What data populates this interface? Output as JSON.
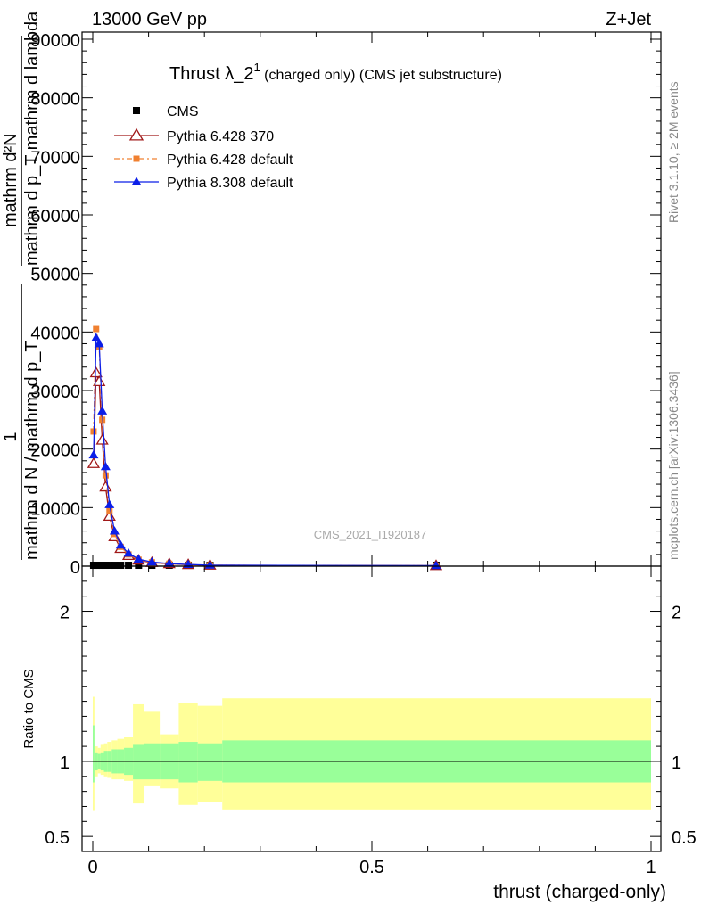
{
  "header": {
    "left": "13000 GeV pp",
    "right": "Z+Jet"
  },
  "side_texts": {
    "rivet": "Rivet 3.1.10, ≥ 2M events",
    "mcplots": "mcplots.cern.ch [arXiv:1306.3436]"
  },
  "watermark": "CMS_2021_I1920187",
  "chart_data": [
    {
      "type": "line",
      "title_main": "Thrust λ_2",
      "title_sup": "1",
      "title_rest": " (charged only) (CMS jet substructure)",
      "ylabel_parts": [
        "1",
        "mathrm d N / mathrm d p_T",
        "mathrm d²N",
        "mathrm d p_T mathrm d lambda"
      ],
      "xlim": [
        0,
        1
      ],
      "ylim": [
        0,
        90000
      ],
      "yticks": [
        {
          "v": 0,
          "label": "0"
        },
        {
          "v": 10000,
          "label": "10000"
        },
        {
          "v": 20000,
          "label": "20000"
        },
        {
          "v": 30000,
          "label": "30000"
        },
        {
          "v": 40000,
          "label": "40000"
        },
        {
          "v": 50000,
          "label": "50000"
        },
        {
          "v": 60000,
          "label": "60000"
        },
        {
          "v": 70000,
          "label": "70000"
        },
        {
          "v": 80000,
          "label": "80000"
        },
        {
          "v": 90000,
          "label": "90000"
        }
      ],
      "series": [
        {
          "name": "CMS",
          "color": "#000000",
          "marker": "square",
          "x": [
            0.0015,
            0.006,
            0.0115,
            0.017,
            0.023,
            0.03,
            0.039,
            0.05,
            0.064,
            0.082,
            0.106,
            0.137,
            0.171,
            0.21,
            0.615
          ],
          "y": [
            150,
            150,
            150,
            150,
            150,
            150,
            150,
            150,
            150,
            150,
            150,
            150,
            150,
            150,
            150
          ]
        },
        {
          "name": "Pythia 6.428 370",
          "color": "#a01818",
          "marker": "open-triangle",
          "x": [
            0.0015,
            0.006,
            0.0115,
            0.017,
            0.023,
            0.03,
            0.039,
            0.05,
            0.064,
            0.082,
            0.106,
            0.137,
            0.171,
            0.21,
            0.615
          ],
          "y": [
            17500,
            33000,
            31500,
            21500,
            13500,
            8500,
            5000,
            3000,
            1800,
            1000,
            600,
            400,
            250,
            150,
            80
          ]
        },
        {
          "name": "Pythia 6.428 default",
          "color": "#f08030",
          "marker": "small-square",
          "x": [
            0.0015,
            0.006,
            0.0115,
            0.017,
            0.023,
            0.03,
            0.039,
            0.05,
            0.064,
            0.082,
            0.106,
            0.137,
            0.171,
            0.21,
            0.615
          ],
          "y": [
            23000,
            40500,
            37500,
            25000,
            15500,
            9500,
            5500,
            3300,
            2000,
            1100,
            650,
            420,
            260,
            150,
            80
          ]
        },
        {
          "name": "Pythia 8.308 default",
          "color": "#0b1ee8",
          "marker": "filled-triangle",
          "x": [
            0.0015,
            0.006,
            0.0115,
            0.017,
            0.023,
            0.03,
            0.039,
            0.05,
            0.064,
            0.082,
            0.106,
            0.137,
            0.171,
            0.21,
            0.615
          ],
          "y": [
            19000,
            39000,
            38000,
            26500,
            17000,
            10500,
            6000,
            3600,
            2200,
            1200,
            700,
            450,
            280,
            160,
            90
          ]
        }
      ]
    },
    {
      "type": "area",
      "ylabel": "Ratio to CMS",
      "xlabel": "thrust (charged-only)",
      "xlim": [
        0,
        1
      ],
      "ylim": [
        0.4,
        2.3
      ],
      "xticks": [
        {
          "v": 0,
          "label": "0"
        },
        {
          "v": 0.5,
          "label": "0.5"
        },
        {
          "v": 1,
          "label": "1"
        }
      ],
      "yticks": [
        {
          "v": 0.5,
          "label": "0.5"
        },
        {
          "v": 1,
          "label": "1"
        },
        {
          "v": 2,
          "label": "2"
        }
      ],
      "bin_edges": [
        0,
        0.003,
        0.009,
        0.014,
        0.02,
        0.026,
        0.034,
        0.044,
        0.056,
        0.072,
        0.092,
        0.12,
        0.154,
        0.188,
        0.232,
        1.0
      ],
      "bands": [
        {
          "name": "stat+syst",
          "color": "#ffff99",
          "lo": [
            0.67,
            0.9,
            0.92,
            0.91,
            0.9,
            0.89,
            0.88,
            0.88,
            0.87,
            0.72,
            0.84,
            0.82,
            0.71,
            0.73,
            0.68
          ],
          "hi": [
            1.43,
            1.1,
            1.09,
            1.11,
            1.12,
            1.13,
            1.14,
            1.15,
            1.16,
            1.38,
            1.33,
            1.18,
            1.39,
            1.37,
            1.42
          ]
        },
        {
          "name": "stat",
          "color": "#99ff99",
          "lo": [
            0.86,
            0.94,
            0.95,
            0.94,
            0.93,
            0.93,
            0.92,
            0.92,
            0.91,
            0.88,
            0.88,
            0.88,
            0.86,
            0.87,
            0.86
          ],
          "hi": [
            1.24,
            1.06,
            1.05,
            1.06,
            1.07,
            1.07,
            1.08,
            1.08,
            1.09,
            1.11,
            1.12,
            1.12,
            1.13,
            1.12,
            1.14
          ]
        }
      ],
      "reference": 1
    }
  ]
}
